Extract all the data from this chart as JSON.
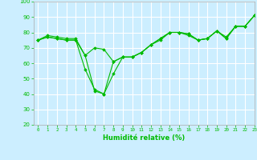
{
  "title": "",
  "xlabel": "Humidité relative (%)",
  "background_color": "#cceeff",
  "grid_color": "#ffffff",
  "line_color": "#00bb00",
  "xlim": [
    -0.5,
    23
  ],
  "ylim": [
    20,
    100
  ],
  "yticks": [
    20,
    30,
    40,
    50,
    60,
    70,
    80,
    90,
    100
  ],
  "xticks": [
    0,
    1,
    2,
    3,
    4,
    5,
    6,
    7,
    8,
    9,
    10,
    11,
    12,
    13,
    14,
    15,
    16,
    17,
    18,
    19,
    20,
    21,
    22,
    23
  ],
  "series": [
    [
      75,
      78,
      77,
      76,
      76,
      65,
      42,
      40,
      61,
      64,
      64,
      67,
      72,
      76,
      80,
      80,
      79,
      75,
      76,
      81,
      76,
      84,
      84,
      91
    ],
    [
      75,
      77,
      76,
      75,
      75,
      56,
      43,
      40,
      53,
      64,
      64,
      67,
      72,
      76,
      80,
      80,
      78,
      75,
      76,
      81,
      76,
      84,
      84,
      91
    ],
    [
      75,
      77,
      76,
      75,
      75,
      65,
      70,
      69,
      61,
      64,
      64,
      67,
      72,
      75,
      80,
      80,
      79,
      75,
      76,
      81,
      77,
      84,
      84,
      91
    ]
  ]
}
